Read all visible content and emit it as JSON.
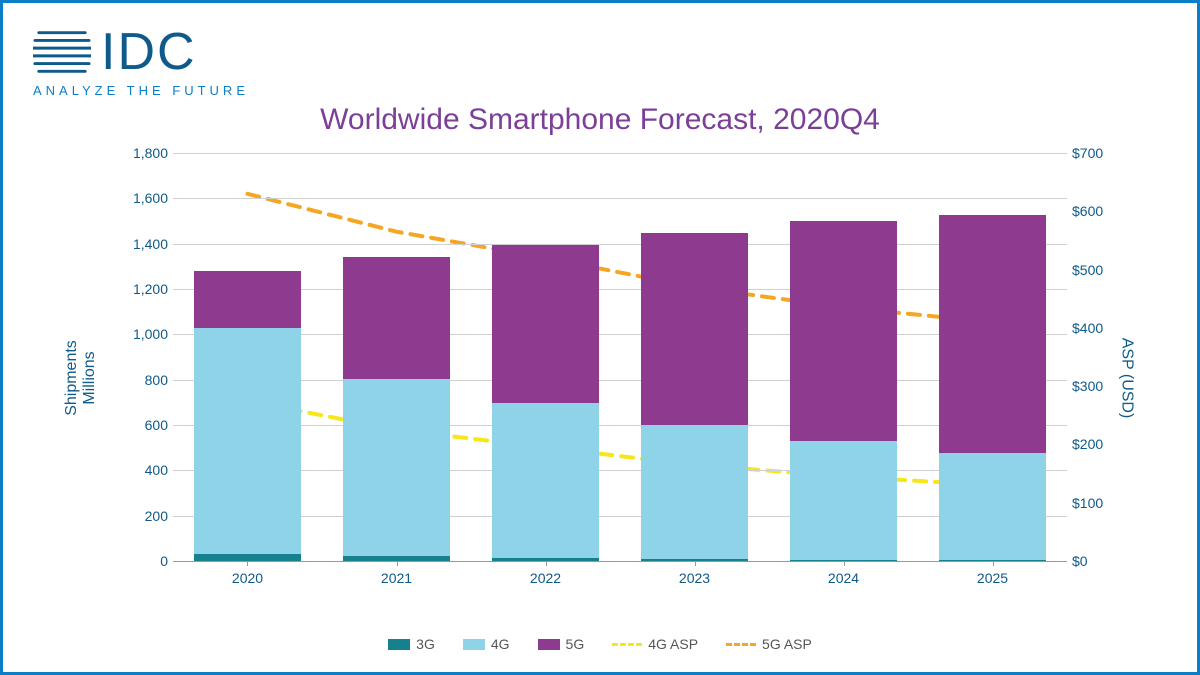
{
  "logo": {
    "text": "IDC",
    "tagline": "ANALYZE THE FUTURE"
  },
  "chart": {
    "title": "Worldwide Smartphone Forecast, 2020Q4",
    "type": "stacked-bar-dual-axis-line",
    "background_color": "#ffffff",
    "border_color": "#0b7ec8",
    "title_color": "#7b3f98",
    "title_fontsize": 30,
    "axis_label_color": "#0e5a8a",
    "tick_color": "#0e5a8a",
    "grid_color": "#d0d0d0",
    "left_axis": {
      "label_line1": "Shipments",
      "label_line2": "Millions",
      "min": 0,
      "max": 1800,
      "tick_step": 200,
      "ticks": [
        "0",
        "200",
        "400",
        "600",
        "800",
        "1,000",
        "1,200",
        "1,400",
        "1,600",
        "1,800"
      ]
    },
    "right_axis": {
      "label": "ASP (USD)",
      "min": 0,
      "max": 700,
      "tick_step": 100,
      "ticks": [
        "$0",
        "$100",
        "$200",
        "$300",
        "$400",
        "$500",
        "$600",
        "$700"
      ]
    },
    "categories": [
      "2020",
      "2021",
      "2022",
      "2023",
      "2024",
      "2025"
    ],
    "bar_width_pct": 12,
    "series_bars": {
      "3G": {
        "color": "#15808e",
        "values": [
          30,
          22,
          15,
          8,
          5,
          3
        ]
      },
      "4G": {
        "color": "#8fd3e8",
        "values": [
          1000,
          780,
          680,
          590,
          525,
          475
        ]
      },
      "5G": {
        "color": "#8e3a8e",
        "values": [
          250,
          540,
          700,
          850,
          970,
          1050
        ]
      }
    },
    "series_lines": {
      "4G_ASP": {
        "color": "#f7e619",
        "dash": "12,9",
        "width": 4,
        "values": [
          275,
          225,
          195,
          165,
          145,
          130
        ]
      },
      "5G_ASP": {
        "color": "#f5a623",
        "dash": "12,9",
        "width": 4,
        "values": [
          630,
          565,
          520,
          470,
          435,
          410
        ]
      }
    },
    "legend": [
      {
        "label": "3G",
        "type": "swatch",
        "color": "#15808e"
      },
      {
        "label": "4G",
        "type": "swatch",
        "color": "#8fd3e8"
      },
      {
        "label": "5G",
        "type": "swatch",
        "color": "#8e3a8e"
      },
      {
        "label": "4G ASP",
        "type": "dash",
        "color": "#f7e619"
      },
      {
        "label": "5G ASP",
        "type": "dash",
        "color": "#f5a623"
      }
    ]
  }
}
